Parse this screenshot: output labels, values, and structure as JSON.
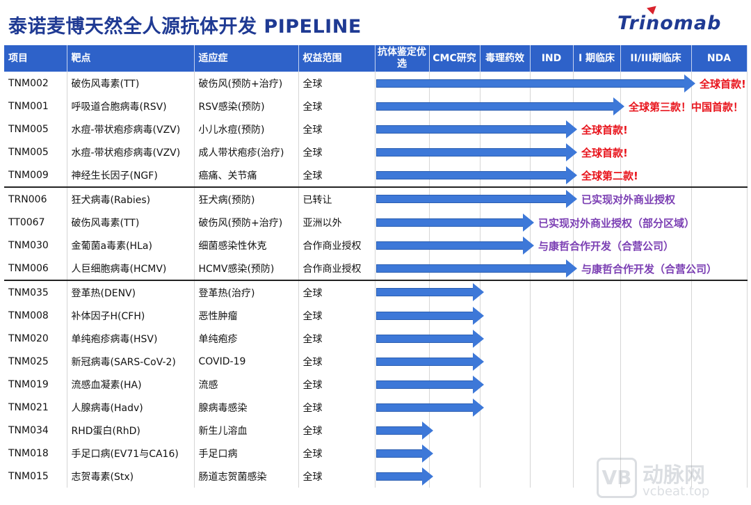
{
  "page": {
    "title": "泰诺麦博天然全人源抗体开发 PIPELINE",
    "logo_text": "Trinomab"
  },
  "table": {
    "headers": [
      "项目",
      "靶点",
      "适应症",
      "权益范围",
      "抗体鉴定优选",
      "CMC研究",
      "毒理药效",
      "IND",
      "I 期临床",
      "II/III期临床",
      "NDA"
    ],
    "rows": [
      {
        "project": "TNM002",
        "target": "破伤风毒素(TT)",
        "indication": "破伤风(预防+治疗)",
        "rights": "全球",
        "note": "全球首款!",
        "note_color": "red",
        "stage": "II/III期临床"
      },
      {
        "project": "TNM001",
        "target": "呼吸道合胞病毒(RSV)",
        "indication": "RSV感染(预防)",
        "rights": "全球",
        "note": "全球第三款！中国首款！",
        "note_color": "red",
        "stage": "I 期临床"
      },
      {
        "project": "TNM005",
        "target": "水痘-带状疱疹病毒(VZV)",
        "indication": "小儿水痘(预防)",
        "rights": "全球",
        "note": "全球首款!",
        "note_color": "red",
        "stage": "IND"
      },
      {
        "project": "TNM005",
        "target": "水痘-带状疱疹病毒(VZV)",
        "indication": "成人带状疱疹(治疗)",
        "rights": "全球",
        "note": "全球首款!",
        "note_color": "red",
        "stage": "IND"
      },
      {
        "project": "TNM009",
        "target": "神经生长因子(NGF)",
        "indication": "癌痛、关节痛",
        "rights": "全球",
        "note": "全球第二款!",
        "note_color": "red",
        "stage": "IND"
      },
      {
        "project": "TRN006",
        "target": "狂犬病毒(Rabies)",
        "indication": "狂犬病(预防)",
        "rights": "已转让",
        "note": "已实现对外商业授权",
        "note_color": "purple",
        "stage": "IND"
      },
      {
        "project": "TT0067",
        "target": "破伤风毒素(TT)",
        "indication": "破伤风(预防+治疗)",
        "rights": "亚洲以外",
        "note": "已实现对外商业授权（部分区域）",
        "note_color": "purple",
        "stage": "毒理药效"
      },
      {
        "project": "TNM030",
        "target": "金葡菌a毒素(HLa)",
        "indication": "细菌感染性休克",
        "rights": "合作商业授权",
        "note": "与康哲合作开发（合营公司）",
        "note_color": "purple",
        "stage": "毒理药效"
      },
      {
        "project": "TNM006",
        "target": "人巨细胞病毒(HCMV)",
        "indication": "HCMV感染(预防)",
        "rights": "合作商业授权",
        "note": "与康哲合作开发（合营公司）",
        "note_color": "purple",
        "stage": "IND"
      },
      {
        "project": "TNM035",
        "target": "登革热(DENV)",
        "indication": "登革热(治疗)",
        "rights": "全球",
        "note": "",
        "note_color": "",
        "stage": "CMC研究"
      },
      {
        "project": "TNM008",
        "target": "补体因子H(CFH)",
        "indication": "恶性肿瘤",
        "rights": "全球",
        "note": "",
        "note_color": "",
        "stage": "CMC研究"
      },
      {
        "project": "TNM020",
        "target": "单纯疱疹病毒(HSV)",
        "indication": "单纯疱疹",
        "rights": "全球",
        "note": "",
        "note_color": "",
        "stage": "CMC研究"
      },
      {
        "project": "TNM025",
        "target": "新冠病毒(SARS-CoV-2)",
        "indication": "COVID-19",
        "rights": "全球",
        "note": "",
        "note_color": "",
        "stage": "CMC研究"
      },
      {
        "project": "TNM019",
        "target": "流感血凝素(HA)",
        "indication": "流感",
        "rights": "全球",
        "note": "",
        "note_color": "",
        "stage": "CMC研究"
      },
      {
        "project": "TNM021",
        "target": "人腺病毒(Hadv)",
        "indication": "腺病毒感染",
        "rights": "全球",
        "note": "",
        "note_color": "",
        "stage": "CMC研究"
      },
      {
        "project": "TNM034",
        "target": "RHD蛋白(RhD)",
        "indication": "新生儿溶血",
        "rights": "全球",
        "note": "",
        "note_color": "",
        "stage": "抗体鉴定优选"
      },
      {
        "project": "TNM018",
        "target": "手足口病(EV71与CA16)",
        "indication": "手足口病",
        "rights": "全球",
        "note": "",
        "note_color": "",
        "stage": "抗体鉴定优选"
      },
      {
        "project": "TNM015",
        "target": "志贺毒素(Stx)",
        "indication": "肠道志贺菌感染",
        "rights": "全球",
        "note": "",
        "note_color": "",
        "stage": "抗体鉴定优选"
      }
    ]
  },
  "colors": {
    "header_bg": "#2e62c9",
    "arrow": "#3d78d8",
    "note_red": "#e8141c",
    "note_purple": "#7b3fb3",
    "title": "#1f3a93"
  },
  "watermark": {
    "cn": "动脉网",
    "url": "vcbeat.top"
  }
}
